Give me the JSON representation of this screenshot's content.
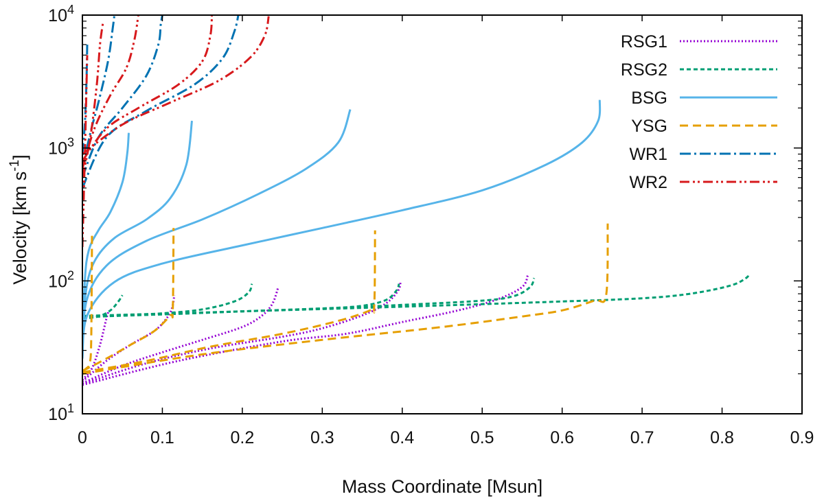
{
  "chart_data": {
    "type": "line",
    "xlabel": "Mass Coordinate [Msun]",
    "ylabel": "Velocity [km s",
    "ylabel_sup": "-1",
    "ylabel_close": "]",
    "xlim": [
      0,
      0.9
    ],
    "ylim": [
      10,
      10000
    ],
    "yscale": "log",
    "grid": false,
    "legend_position": "top-right",
    "x_ticks": [
      0,
      0.1,
      0.2,
      0.3,
      0.4,
      0.5,
      0.6,
      0.7,
      0.8,
      0.9
    ],
    "x_tick_labels": [
      "0",
      "0.1",
      "0.2",
      "0.3",
      "0.4",
      "0.5",
      "0.6",
      "0.7",
      "0.8",
      "0.9"
    ],
    "y_ticks": [
      {
        "value": 10,
        "base": "10",
        "exp": "1"
      },
      {
        "value": 100,
        "base": "10",
        "exp": "2"
      },
      {
        "value": 1000,
        "base": "10",
        "exp": "3"
      },
      {
        "value": 10000,
        "base": "10",
        "exp": "4"
      }
    ],
    "series": [
      {
        "name": "RSG1",
        "color": "#9400d3",
        "dash": "2 3",
        "width": 3,
        "curves": [
          [
            [
              0,
              18
            ],
            [
              0.012,
              22
            ],
            [
              0.022,
              33
            ],
            [
              0.03,
              52
            ],
            [
              0.033,
              60
            ]
          ],
          [
            [
              0,
              17.5
            ],
            [
              0.03,
              25
            ],
            [
              0.06,
              33
            ],
            [
              0.09,
              42
            ],
            [
              0.105,
              52
            ],
            [
              0.112,
              62
            ],
            [
              0.115,
              78
            ]
          ],
          [
            [
              0,
              17
            ],
            [
              0.05,
              23
            ],
            [
              0.1,
              29
            ],
            [
              0.15,
              36
            ],
            [
              0.2,
              45
            ],
            [
              0.225,
              55
            ],
            [
              0.238,
              68
            ],
            [
              0.245,
              90
            ]
          ],
          [
            [
              0,
              16.8
            ],
            [
              0.08,
              24
            ],
            [
              0.16,
              31
            ],
            [
              0.25,
              38
            ],
            [
              0.3,
              44
            ],
            [
              0.35,
              55
            ],
            [
              0.38,
              68
            ],
            [
              0.395,
              85
            ],
            [
              0.398,
              100
            ]
          ],
          [
            [
              0,
              16.5
            ],
            [
              0.12,
              25
            ],
            [
              0.25,
              35
            ],
            [
              0.33,
              40
            ],
            [
              0.4,
              49
            ],
            [
              0.47,
              60
            ],
            [
              0.52,
              73
            ],
            [
              0.55,
              90
            ],
            [
              0.557,
              110
            ]
          ]
        ]
      },
      {
        "name": "RSG2",
        "color": "#009e73",
        "dash": "6 4",
        "width": 3,
        "curves": [
          [
            [
              0,
              52
            ],
            [
              0.02,
              54
            ],
            [
              0.035,
              60
            ],
            [
              0.045,
              70
            ],
            [
              0.05,
              78
            ]
          ],
          [
            [
              0,
              53
            ],
            [
              0.05,
              55
            ],
            [
              0.1,
              57
            ],
            [
              0.15,
              61
            ],
            [
              0.19,
              70
            ],
            [
              0.208,
              82
            ],
            [
              0.212,
              95
            ]
          ],
          [
            [
              0,
              53.5
            ],
            [
              0.1,
              56
            ],
            [
              0.2,
              59
            ],
            [
              0.3,
              62
            ],
            [
              0.35,
              65
            ],
            [
              0.38,
              72
            ],
            [
              0.393,
              85
            ],
            [
              0.396,
              95
            ]
          ],
          [
            [
              0,
              54
            ],
            [
              0.1,
              56
            ],
            [
              0.2,
              59
            ],
            [
              0.3,
              62
            ],
            [
              0.4,
              66
            ],
            [
              0.5,
              71
            ],
            [
              0.54,
              77
            ],
            [
              0.56,
              90
            ],
            [
              0.565,
              105
            ]
          ],
          [
            [
              0,
              54.5
            ],
            [
              0.2,
              59
            ],
            [
              0.4,
              64
            ],
            [
              0.6,
              70
            ],
            [
              0.7,
              74
            ],
            [
              0.76,
              80
            ],
            [
              0.81,
              92
            ],
            [
              0.83,
              105
            ],
            [
              0.833,
              113
            ]
          ]
        ]
      },
      {
        "name": "BSG",
        "color": "#56b4e9",
        "dash": "",
        "width": 3,
        "curves": [
          [
            [
              0,
              31
            ],
            [
              0.003,
              100
            ],
            [
              0.008,
              170
            ],
            [
              0.02,
              240
            ],
            [
              0.035,
              330
            ],
            [
              0.05,
              550
            ],
            [
              0.056,
              900
            ],
            [
              0.058,
              1300
            ]
          ],
          [
            [
              0,
              29
            ],
            [
              0.004,
              80
            ],
            [
              0.015,
              140
            ],
            [
              0.04,
              210
            ],
            [
              0.08,
              290
            ],
            [
              0.11,
              420
            ],
            [
              0.13,
              750
            ],
            [
              0.137,
              1600
            ]
          ],
          [
            [
              0,
              27
            ],
            [
              0.005,
              70
            ],
            [
              0.03,
              130
            ],
            [
              0.08,
              200
            ],
            [
              0.15,
              290
            ],
            [
              0.22,
              450
            ],
            [
              0.28,
              700
            ],
            [
              0.32,
              1100
            ],
            [
              0.335,
              1950
            ]
          ],
          [
            [
              0,
              26
            ],
            [
              0.006,
              55
            ],
            [
              0.04,
              98
            ],
            [
              0.1,
              135
            ],
            [
              0.2,
              185
            ],
            [
              0.3,
              250
            ],
            [
              0.4,
              340
            ],
            [
              0.5,
              480
            ],
            [
              0.58,
              750
            ],
            [
              0.625,
              1100
            ],
            [
              0.645,
              1600
            ],
            [
              0.647,
              2300
            ]
          ]
        ]
      },
      {
        "name": "YSG",
        "color": "#e69f00",
        "dash": "12 7",
        "width": 3,
        "curves": [
          [
            [
              0,
              21
            ],
            [
              0.005,
              22
            ],
            [
              0.009,
              24
            ],
            [
              0.011,
              35
            ],
            [
              0.012,
              230
            ]
          ],
          [
            [
              0,
              21
            ],
            [
              0.03,
              26
            ],
            [
              0.06,
              33
            ],
            [
              0.09,
              42
            ],
            [
              0.11,
              55
            ],
            [
              0.113,
              60
            ],
            [
              0.114,
              250
            ]
          ],
          [
            [
              0,
              20.5
            ],
            [
              0.08,
              25
            ],
            [
              0.16,
              32
            ],
            [
              0.25,
              40
            ],
            [
              0.32,
              50
            ],
            [
              0.36,
              60
            ],
            [
              0.365,
              65
            ],
            [
              0.366,
              240
            ]
          ],
          [
            [
              0,
              20
            ],
            [
              0.15,
              28
            ],
            [
              0.3,
              36
            ],
            [
              0.45,
              45
            ],
            [
              0.55,
              54
            ],
            [
              0.6,
              60
            ],
            [
              0.64,
              71
            ],
            [
              0.655,
              78
            ],
            [
              0.657,
              270
            ]
          ]
        ]
      },
      {
        "name": "WR1",
        "color": "#0072b2",
        "dash": "16 5 3 5",
        "width": 3,
        "curves": [
          [
            [
              0,
              900
            ],
            [
              0.003,
              1500
            ],
            [
              0.005,
              3000
            ],
            [
              0.006,
              6000
            ]
          ],
          [
            [
              0,
              700
            ],
            [
              0.01,
              1300
            ],
            [
              0.02,
              2200
            ],
            [
              0.032,
              4500
            ],
            [
              0.038,
              8000
            ],
            [
              0.04,
              10000
            ]
          ],
          [
            [
              0,
              600
            ],
            [
              0.02,
              1200
            ],
            [
              0.05,
              2000
            ],
            [
              0.08,
              3500
            ],
            [
              0.095,
              6000
            ],
            [
              0.098,
              8500
            ],
            [
              0.1,
              10000
            ]
          ],
          [
            [
              0,
              500
            ],
            [
              0.03,
              1200
            ],
            [
              0.08,
              1900
            ],
            [
              0.14,
              3000
            ],
            [
              0.175,
              4700
            ],
            [
              0.19,
              7500
            ],
            [
              0.195,
              10000
            ]
          ]
        ]
      },
      {
        "name": "WR2",
        "color": "#d7191c",
        "dash": "14 5 3 4 3 5",
        "width": 3,
        "curves": [
          [
            [
              0,
              180
            ],
            [
              0.002,
              500
            ],
            [
              0.004,
              1500
            ],
            [
              0.006,
              5000
            ]
          ],
          [
            [
              0,
              600
            ],
            [
              0.01,
              1200
            ],
            [
              0.018,
              3000
            ],
            [
              0.022,
              6000
            ],
            [
              0.026,
              9000
            ]
          ],
          [
            [
              0,
              700
            ],
            [
              0.015,
              1400
            ],
            [
              0.035,
              2500
            ],
            [
              0.055,
              4000
            ],
            [
              0.065,
              6500
            ],
            [
              0.07,
              10000
            ]
          ],
          [
            [
              0,
              800
            ],
            [
              0.03,
              1400
            ],
            [
              0.07,
              2000
            ],
            [
              0.12,
              3000
            ],
            [
              0.15,
              4500
            ],
            [
              0.16,
              7000
            ],
            [
              0.162,
              10000
            ]
          ],
          [
            [
              0,
              900
            ],
            [
              0.05,
              1500
            ],
            [
              0.11,
              2200
            ],
            [
              0.17,
              3200
            ],
            [
              0.21,
              4800
            ],
            [
              0.228,
              7000
            ],
            [
              0.233,
              9800
            ]
          ]
        ]
      }
    ]
  }
}
